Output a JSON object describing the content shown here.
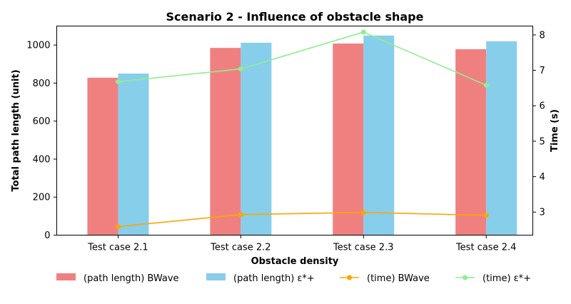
{
  "chart_data": {
    "type": "bar",
    "title": "Scenario 2 - Influence of obstacle shape",
    "xlabel": "Obstacle density",
    "ylabel": "Total path length (unit)",
    "y2label": "Time (s)",
    "categories": [
      "Test case 2.1",
      "Test case 2.2",
      "Test case 2.3",
      "Test case 2.4"
    ],
    "ylim": [
      0,
      1100
    ],
    "yticks": [
      "0",
      "200",
      "400",
      "600",
      "800",
      "1000"
    ],
    "y2lim": [
      2.35,
      8.25
    ],
    "y2ticks": [
      "3",
      "4",
      "5",
      "6",
      "7",
      "8"
    ],
    "grid": false,
    "legend_position": "bottom",
    "bar_series": [
      {
        "name": "(path length) BWave",
        "color": "#f08080",
        "values": [
          828,
          985,
          1008,
          978
        ]
      },
      {
        "name": "(path length) ε*+",
        "color": "#87ceeb",
        "values": [
          850,
          1012,
          1050,
          1020
        ]
      }
    ],
    "line_series": [
      {
        "name": "(time) BWave",
        "color": "#ffa500",
        "axis": "right",
        "values": [
          2.59,
          2.93,
          2.99,
          2.91
        ]
      },
      {
        "name": "(time) ε*+",
        "color": "#90ee90",
        "axis": "right",
        "values": [
          6.68,
          7.04,
          8.08,
          6.58
        ]
      }
    ]
  }
}
